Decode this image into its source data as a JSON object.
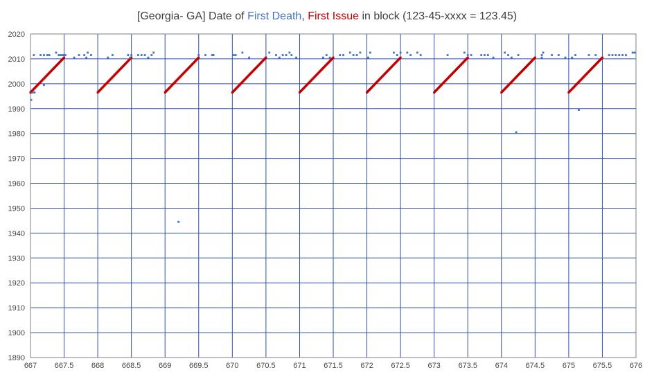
{
  "chart_data": {
    "type": "scatter",
    "title_parts": {
      "prefix": "[Georgia- GA] Date of ",
      "first_death": "First Death",
      "sep": ", ",
      "first_issue": "First Issue",
      "suffix": " in block (123-45-xxxx = 123.45)"
    },
    "xlim": [
      667,
      676
    ],
    "ylim": [
      1890,
      2020
    ],
    "x_ticks": [
      "667",
      "667.5",
      "668",
      "668.5",
      "669",
      "669.5",
      "670",
      "670.5",
      "671",
      "671.5",
      "672",
      "672.5",
      "673",
      "673.5",
      "674",
      "674.5",
      "675",
      "675.5",
      "676"
    ],
    "y_ticks": [
      "2020",
      "2010",
      "2000",
      "1990",
      "1980",
      "1970",
      "1960",
      "1950",
      "1940",
      "1930",
      "1920",
      "1910",
      "1900",
      "1890"
    ],
    "grid": true,
    "colors": {
      "first_death": "#4472C4",
      "first_issue": "#C00000",
      "grid": "#2F4FA8",
      "axis": "#7F7F7F"
    },
    "first_issue_pattern": {
      "blocks": [
        667,
        668,
        669,
        670,
        671,
        672,
        673,
        674,
        675
      ],
      "start_year": 1996.5,
      "end_year": 2010.5,
      "points_per_block": 50,
      "block_span": 0.5
    },
    "first_death_points": [
      [
        667.01,
        1993.5
      ],
      [
        667.03,
        1996.5
      ],
      [
        667.06,
        1996.5
      ],
      [
        667.05,
        2011.5
      ],
      [
        667.15,
        2011.5
      ],
      [
        667.2,
        2011.5
      ],
      [
        667.25,
        2011.5
      ],
      [
        667.28,
        2011.5
      ],
      [
        667.2,
        1999.5
      ],
      [
        667.38,
        2012.5
      ],
      [
        667.42,
        2011.5
      ],
      [
        667.45,
        2011.5
      ],
      [
        667.48,
        2011.5
      ],
      [
        667.52,
        2011.5
      ],
      [
        667.72,
        2011.5
      ],
      [
        667.8,
        2011.5
      ],
      [
        667.85,
        2012.5
      ],
      [
        667.9,
        2011.5
      ],
      [
        667.65,
        2010.5
      ],
      [
        667.83,
        2010.5
      ],
      [
        668.15,
        2010.5
      ],
      [
        668.22,
        2011.5
      ],
      [
        668.45,
        2011.5
      ],
      [
        668.5,
        2011.5
      ],
      [
        668.48,
        2010.5
      ],
      [
        668.6,
        2011.5
      ],
      [
        668.65,
        2011.5
      ],
      [
        668.7,
        2011.5
      ],
      [
        668.75,
        2010.5
      ],
      [
        668.8,
        2011.5
      ],
      [
        668.83,
        2012.5
      ],
      [
        669.2,
        1944.5
      ],
      [
        669.5,
        2011.5
      ],
      [
        669.6,
        2011.5
      ],
      [
        669.7,
        2011.5
      ],
      [
        669.72,
        2011.5
      ],
      [
        670.02,
        2011.5
      ],
      [
        670.05,
        2011.5
      ],
      [
        670.15,
        2012.5
      ],
      [
        670.25,
        2010.5
      ],
      [
        670.55,
        2012.5
      ],
      [
        670.65,
        2011.5
      ],
      [
        670.7,
        2010.5
      ],
      [
        670.75,
        2011.5
      ],
      [
        670.8,
        2011.5
      ],
      [
        670.85,
        2012.5
      ],
      [
        670.88,
        2011.5
      ],
      [
        670.95,
        2010.5
      ],
      [
        671.35,
        2010.5
      ],
      [
        671.4,
        2011.5
      ],
      [
        671.45,
        2010.5
      ],
      [
        671.6,
        2011.5
      ],
      [
        671.65,
        2011.5
      ],
      [
        671.75,
        2012.5
      ],
      [
        671.8,
        2011.5
      ],
      [
        671.85,
        2011.5
      ],
      [
        671.9,
        2012.5
      ],
      [
        672.02,
        2010.5
      ],
      [
        672.05,
        2012.5
      ],
      [
        672.4,
        2012.5
      ],
      [
        672.45,
        2011.5
      ],
      [
        672.5,
        2012.5
      ],
      [
        672.6,
        2012.5
      ],
      [
        672.65,
        2011.5
      ],
      [
        672.75,
        2012.5
      ],
      [
        672.8,
        2011.5
      ],
      [
        673.2,
        2011.5
      ],
      [
        673.45,
        2012.5
      ],
      [
        673.5,
        2011.5
      ],
      [
        673.55,
        2011.5
      ],
      [
        673.7,
        2011.5
      ],
      [
        673.75,
        2011.5
      ],
      [
        673.8,
        2011.5
      ],
      [
        673.88,
        2010.5
      ],
      [
        674.05,
        2012.5
      ],
      [
        674.1,
        2011.5
      ],
      [
        674.15,
        2010.5
      ],
      [
        674.22,
        1980.5
      ],
      [
        674.25,
        2011.5
      ],
      [
        674.6,
        2011.5
      ],
      [
        674.62,
        2012.5
      ],
      [
        674.6,
        2010.5
      ],
      [
        674.75,
        2011.5
      ],
      [
        674.85,
        2011.5
      ],
      [
        674.95,
        2010.5
      ],
      [
        675.05,
        2010.5
      ],
      [
        675.1,
        2011.5
      ],
      [
        675.15,
        1989.5
      ],
      [
        675.3,
        2011.5
      ],
      [
        675.4,
        2011.5
      ],
      [
        675.6,
        2011.5
      ],
      [
        675.65,
        2011.5
      ],
      [
        675.7,
        2011.5
      ],
      [
        675.75,
        2011.5
      ],
      [
        675.8,
        2011.5
      ],
      [
        675.85,
        2011.5
      ],
      [
        675.95,
        2012.5
      ],
      [
        675.98,
        2012.5
      ]
    ]
  }
}
